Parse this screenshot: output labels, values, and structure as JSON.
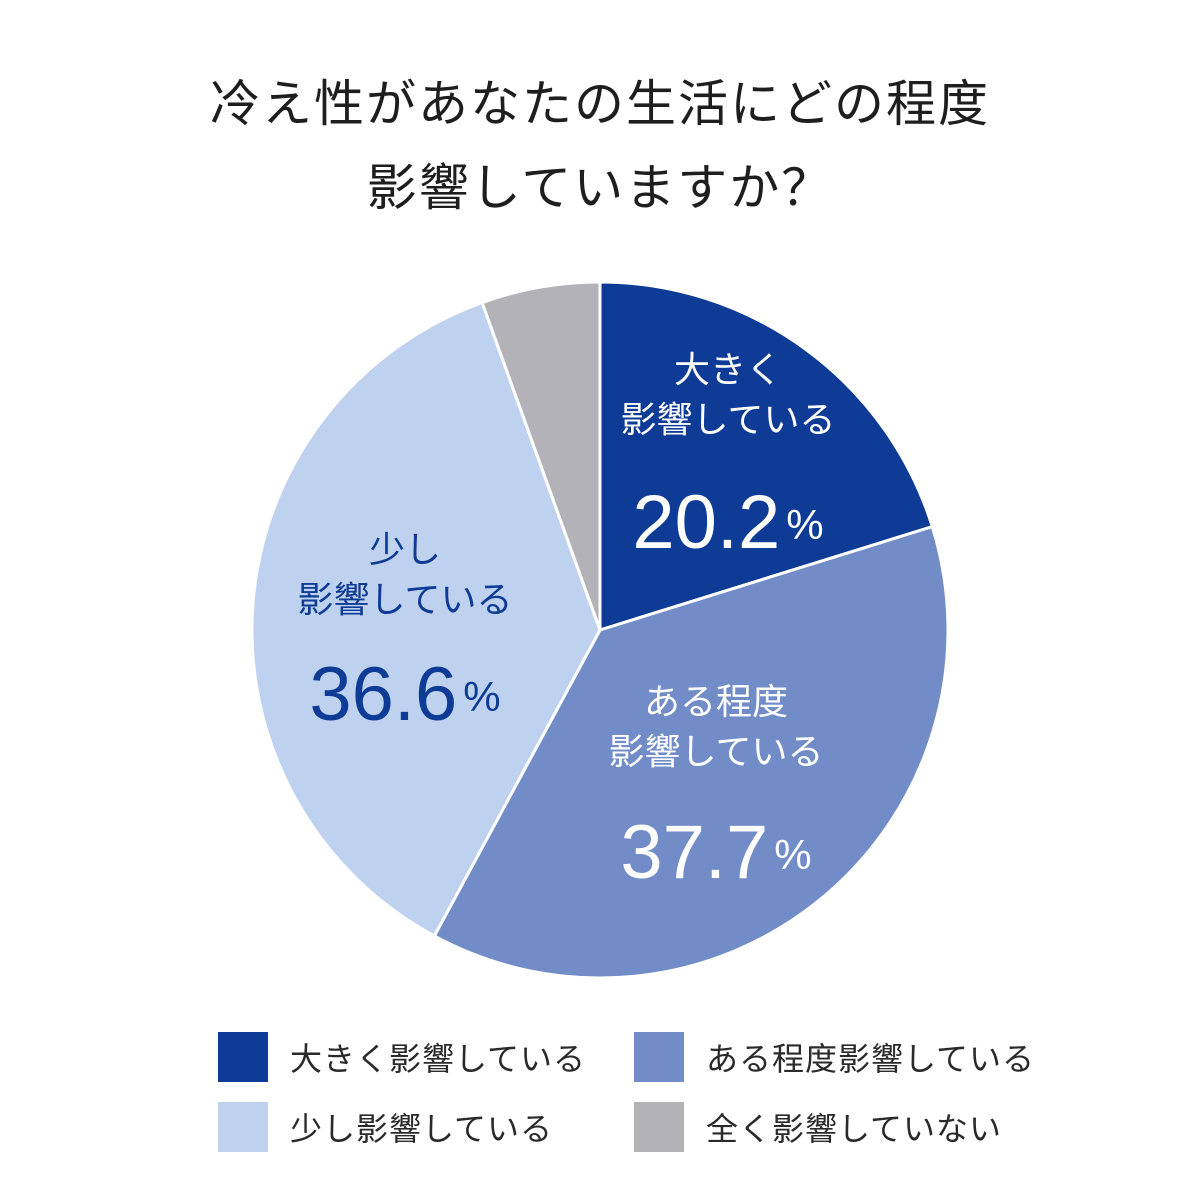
{
  "chart_data": {
    "type": "pie",
    "title": "冷え性があなたの生活にどの程度影響していますか？",
    "title_lines": [
      "冷え性があなたの生活にどの程度",
      "影響していますか？"
    ],
    "unit": "%",
    "slices": [
      {
        "name": "大きく影響している",
        "label_lines": [
          "大きく",
          "影響している"
        ],
        "value": 20.2,
        "value_text": "20.2",
        "color": "#0e3b96",
        "label_color": "#ffffff"
      },
      {
        "name": "ある程度影響している",
        "label_lines": [
          "ある程度",
          "影響している"
        ],
        "value": 37.7,
        "value_text": "37.7",
        "color": "#728cc8",
        "label_color": "#ffffff"
      },
      {
        "name": "少し影響している",
        "label_lines": [
          "少し",
          "影響している"
        ],
        "value": 36.6,
        "value_text": "36.6",
        "color": "#bed1ee",
        "label_color": "#0e3b96"
      },
      {
        "name": "全く影響していない",
        "label_lines": [],
        "value": 5.5,
        "value_text": "",
        "color": "#b3b3b7",
        "label_color": "#ffffff"
      }
    ],
    "legend_position": "bottom",
    "legend": [
      "大きく影響している",
      "ある程度影響している",
      "少し影響している",
      "全く影響していない"
    ]
  }
}
